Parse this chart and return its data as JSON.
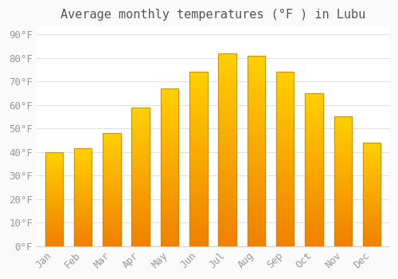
{
  "months": [
    "Jan",
    "Feb",
    "Mar",
    "Apr",
    "May",
    "Jun",
    "Jul",
    "Aug",
    "Sep",
    "Oct",
    "Nov",
    "Dec"
  ],
  "values": [
    40,
    41.5,
    48,
    59,
    67,
    74,
    82,
    81,
    74,
    65,
    55,
    44
  ],
  "title": "Average monthly temperatures (°F ) in Lubu",
  "ytick_labels": [
    "0°F",
    "10°F",
    "20°F",
    "30°F",
    "40°F",
    "50°F",
    "60°F",
    "70°F",
    "80°F",
    "90°F"
  ],
  "ytick_vals": [
    0,
    10,
    20,
    30,
    40,
    50,
    60,
    70,
    80,
    90
  ],
  "ylim": [
    0,
    93
  ],
  "bar_color_top": "#FFD000",
  "bar_color_bottom": "#F08000",
  "bar_edge_color": "#C8850A",
  "background_color": "#FAFAFA",
  "plot_bg_color": "#FFFFFF",
  "grid_color": "#E0E0E0",
  "title_fontsize": 11,
  "tick_fontsize": 9,
  "title_color": "#555555",
  "tick_color": "#999999"
}
